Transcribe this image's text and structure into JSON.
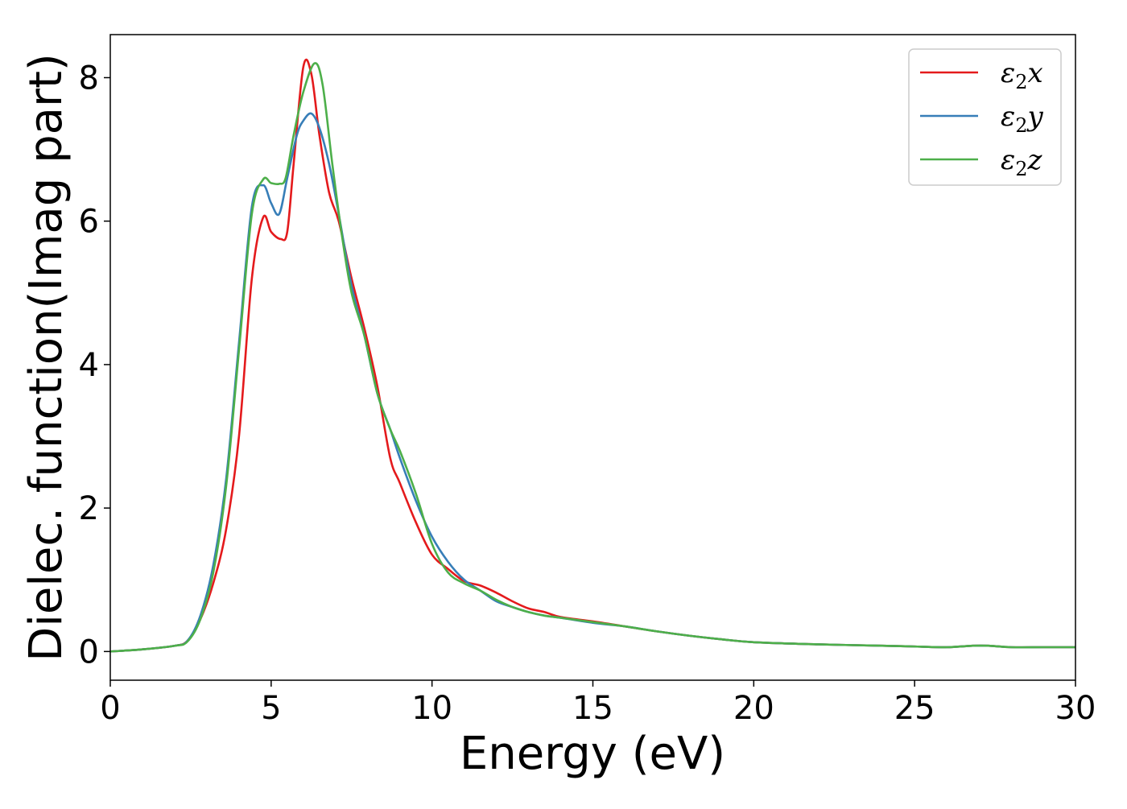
{
  "chart_data": {
    "type": "line",
    "title": "",
    "xlabel": "Energy (eV)",
    "ylabel": "Dielec. function(Imag part)",
    "xlim": [
      0,
      30
    ],
    "ylim": [
      -0.4,
      8.6
    ],
    "xticks": [
      0,
      5,
      10,
      15,
      20,
      25,
      30
    ],
    "yticks": [
      0,
      2,
      4,
      6,
      8
    ],
    "xtick_labels": [
      "0",
      "5",
      "10",
      "15",
      "20",
      "25",
      "30"
    ],
    "ytick_labels": [
      "0",
      "2",
      "4",
      "6",
      "8"
    ],
    "grid": false,
    "legend_position": "top-right",
    "series": [
      {
        "name": "ε2x",
        "legend_base": "ε",
        "legend_sub": "2",
        "legend_suffix": "x",
        "color": "#e41a1c",
        "x": [
          0,
          1,
          2,
          2.4,
          2.8,
          3.2,
          3.6,
          4.0,
          4.4,
          4.75,
          5.0,
          5.3,
          5.5,
          5.7,
          6.0,
          6.25,
          6.5,
          6.8,
          7.1,
          7.5,
          7.9,
          8.3,
          8.7,
          9.0,
          9.5,
          10.0,
          10.5,
          11.0,
          11.5,
          12.0,
          12.5,
          13.0,
          13.5,
          14.0,
          15.0,
          16.0,
          17.0,
          18.0,
          19.0,
          20.0,
          22.0,
          24.0,
          25.0,
          26.0,
          26.8,
          27.3,
          28.0,
          29.0,
          30.0
        ],
        "y": [
          0,
          0.03,
          0.08,
          0.15,
          0.45,
          0.95,
          1.7,
          3.0,
          5.2,
          6.05,
          5.85,
          5.75,
          5.85,
          6.8,
          8.15,
          8.05,
          7.2,
          6.4,
          6.0,
          5.2,
          4.5,
          3.7,
          2.7,
          2.35,
          1.8,
          1.35,
          1.15,
          0.98,
          0.92,
          0.82,
          0.7,
          0.6,
          0.55,
          0.48,
          0.42,
          0.35,
          0.28,
          0.22,
          0.17,
          0.13,
          0.1,
          0.08,
          0.07,
          0.06,
          0.08,
          0.08,
          0.06,
          0.06,
          0.06
        ]
      },
      {
        "name": "ε2y",
        "legend_base": "ε",
        "legend_sub": "2",
        "legend_suffix": "y",
        "color": "#377eb8",
        "x": [
          0,
          1,
          2,
          2.4,
          2.8,
          3.2,
          3.6,
          4.0,
          4.4,
          4.75,
          5.0,
          5.25,
          5.5,
          5.8,
          6.0,
          6.25,
          6.5,
          6.8,
          7.1,
          7.5,
          7.9,
          8.3,
          8.7,
          9.0,
          9.5,
          10.0,
          10.5,
          11.0,
          11.5,
          12.0,
          12.5,
          13.0,
          13.5,
          14.0,
          15.0,
          16.0,
          17.0,
          18.0,
          19.0,
          20.0,
          22.0,
          24.0,
          25.0,
          26.0,
          26.8,
          27.3,
          28.0,
          29.0,
          30.0
        ],
        "y": [
          0,
          0.03,
          0.08,
          0.15,
          0.5,
          1.2,
          2.4,
          4.3,
          6.2,
          6.5,
          6.25,
          6.1,
          6.6,
          7.2,
          7.4,
          7.5,
          7.3,
          6.8,
          6.1,
          5.1,
          4.4,
          3.6,
          3.1,
          2.7,
          2.1,
          1.6,
          1.25,
          1.0,
          0.85,
          0.7,
          0.62,
          0.55,
          0.5,
          0.47,
          0.4,
          0.35,
          0.28,
          0.22,
          0.17,
          0.13,
          0.1,
          0.08,
          0.07,
          0.06,
          0.08,
          0.08,
          0.06,
          0.06,
          0.06
        ]
      },
      {
        "name": "ε2z",
        "legend_base": "ε",
        "legend_sub": "2",
        "legend_suffix": "z",
        "color": "#4daf4a",
        "x": [
          0,
          1,
          2,
          2.4,
          2.8,
          3.2,
          3.6,
          4.0,
          4.4,
          4.75,
          5.0,
          5.25,
          5.45,
          5.7,
          6.0,
          6.35,
          6.6,
          6.9,
          7.2,
          7.5,
          7.9,
          8.3,
          8.7,
          9.0,
          9.5,
          10.0,
          10.5,
          11.0,
          11.5,
          12.0,
          12.5,
          13.0,
          13.5,
          14.0,
          15.0,
          16.0,
          17.0,
          18.0,
          19.0,
          20.0,
          22.0,
          24.0,
          25.0,
          26.0,
          26.8,
          27.3,
          28.0,
          29.0,
          30.0
        ],
        "y": [
          0,
          0.03,
          0.08,
          0.14,
          0.45,
          1.1,
          2.3,
          4.2,
          6.1,
          6.58,
          6.53,
          6.52,
          6.6,
          7.2,
          7.8,
          8.2,
          7.9,
          6.8,
          5.8,
          5.0,
          4.4,
          3.6,
          3.1,
          2.8,
          2.2,
          1.5,
          1.1,
          0.95,
          0.85,
          0.72,
          0.62,
          0.55,
          0.5,
          0.47,
          0.41,
          0.35,
          0.28,
          0.22,
          0.17,
          0.13,
          0.1,
          0.08,
          0.07,
          0.06,
          0.08,
          0.08,
          0.06,
          0.06,
          0.06
        ]
      }
    ]
  }
}
